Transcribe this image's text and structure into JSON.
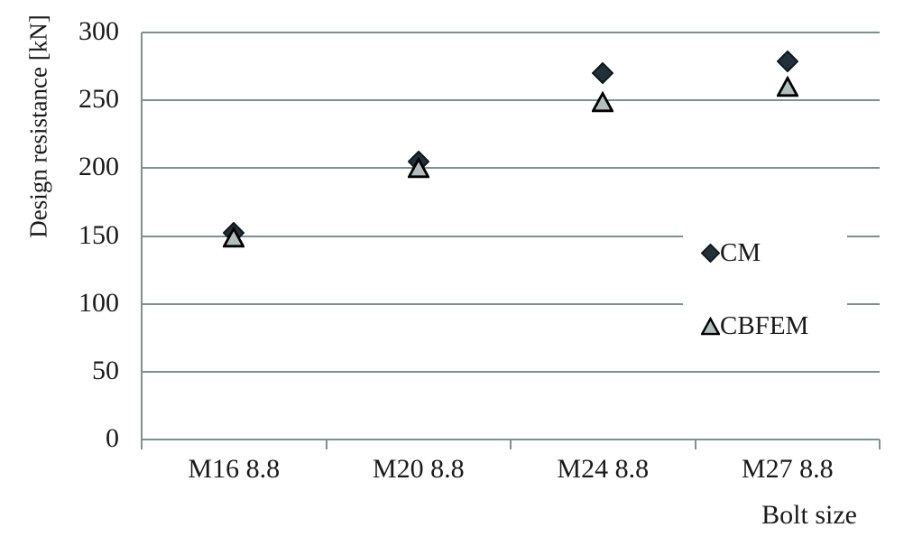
{
  "chart_data": {
    "type": "scatter",
    "title": "",
    "categories": [
      "M16 8.8",
      "M20 8.8",
      "M24 8.8",
      "M27 8.8"
    ],
    "series": [
      {
        "name": "CM",
        "marker": "diamond",
        "fill": "#223139",
        "stroke": "#0e161b",
        "values": [
          152,
          205,
          270,
          279
        ]
      },
      {
        "name": "CBFEM",
        "marker": "triangle",
        "fill": "#b2bebd",
        "stroke": "#000000",
        "values": [
          149,
          200,
          249,
          260
        ]
      }
    ],
    "xlabel": "Bolt size",
    "ylabel": "Design resistance [kN]",
    "ylim": [
      0,
      300
    ],
    "yticks": [
      0,
      50,
      100,
      150,
      200,
      250,
      300
    ],
    "grid": true,
    "legend_position": "middle-right",
    "gridline_color": "#7e918f",
    "axis_color": "#7e918f",
    "text_color": "#1a1a1a",
    "background_color": "#ffffff"
  }
}
